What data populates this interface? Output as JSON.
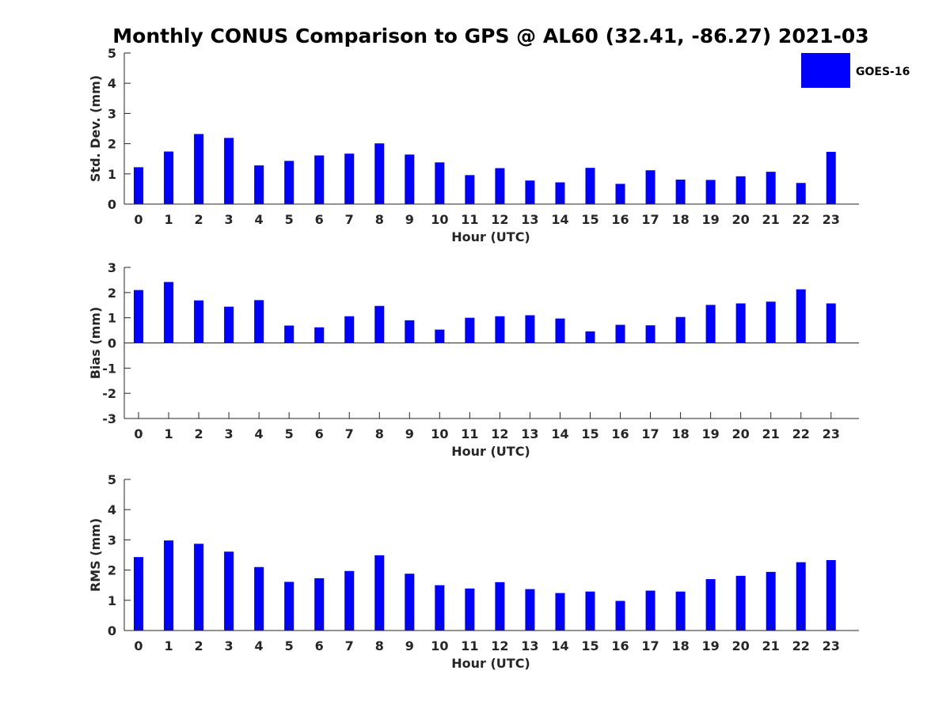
{
  "figure": {
    "title": "Monthly CONUS Comparison to GPS @ AL60 (32.41, -86.27) 2021-03"
  },
  "legend": {
    "label": "GOES-16",
    "color": "#0000ff",
    "position": "top-right"
  },
  "chart_data": [
    {
      "type": "bar",
      "xlabel": "Hour (UTC)",
      "ylabel": "Std. Dev. (mm)",
      "ylim": [
        0,
        5
      ],
      "yticks": [
        0,
        1,
        2,
        3,
        4,
        5
      ],
      "categories": [
        "0",
        "1",
        "2",
        "3",
        "4",
        "5",
        "6",
        "7",
        "8",
        "9",
        "10",
        "11",
        "12",
        "13",
        "14",
        "15",
        "16",
        "17",
        "18",
        "19",
        "20",
        "21",
        "22",
        "23"
      ],
      "series": [
        {
          "name": "GOES-16",
          "color": "#0000ff",
          "values": [
            1.22,
            1.74,
            2.32,
            2.19,
            1.28,
            1.43,
            1.61,
            1.67,
            2.01,
            1.64,
            1.38,
            0.96,
            1.19,
            0.78,
            0.72,
            1.2,
            0.67,
            1.12,
            0.81,
            0.8,
            0.92,
            1.07,
            0.7,
            1.73
          ]
        }
      ]
    },
    {
      "type": "bar",
      "xlabel": "Hour (UTC)",
      "ylabel": "Bias (mm)",
      "ylim": [
        -3,
        3
      ],
      "yticks": [
        -3,
        -2,
        -1,
        0,
        1,
        2,
        3
      ],
      "categories": [
        "0",
        "1",
        "2",
        "3",
        "4",
        "5",
        "6",
        "7",
        "8",
        "9",
        "10",
        "11",
        "12",
        "13",
        "14",
        "15",
        "16",
        "17",
        "18",
        "19",
        "20",
        "21",
        "22",
        "23"
      ],
      "series": [
        {
          "name": "GOES-16",
          "color": "#0000ff",
          "values": [
            2.1,
            2.42,
            1.69,
            1.44,
            1.7,
            0.69,
            0.62,
            1.06,
            1.47,
            0.9,
            0.53,
            1.0,
            1.06,
            1.1,
            0.97,
            0.46,
            0.72,
            0.7,
            1.03,
            1.51,
            1.57,
            1.64,
            2.13,
            1.57
          ]
        }
      ]
    },
    {
      "type": "bar",
      "xlabel": "Hour (UTC)",
      "ylabel": "RMS (mm)",
      "ylim": [
        0,
        5
      ],
      "yticks": [
        0,
        1,
        2,
        3,
        4,
        5
      ],
      "categories": [
        "0",
        "1",
        "2",
        "3",
        "4",
        "5",
        "6",
        "7",
        "8",
        "9",
        "10",
        "11",
        "12",
        "13",
        "14",
        "15",
        "16",
        "17",
        "18",
        "19",
        "20",
        "21",
        "22",
        "23"
      ],
      "series": [
        {
          "name": "GOES-16",
          "color": "#0000ff",
          "values": [
            2.43,
            2.98,
            2.87,
            2.61,
            2.1,
            1.61,
            1.73,
            1.97,
            2.49,
            1.88,
            1.5,
            1.39,
            1.6,
            1.37,
            1.24,
            1.29,
            0.98,
            1.32,
            1.29,
            1.7,
            1.81,
            1.94,
            2.26,
            2.33
          ]
        }
      ]
    }
  ]
}
